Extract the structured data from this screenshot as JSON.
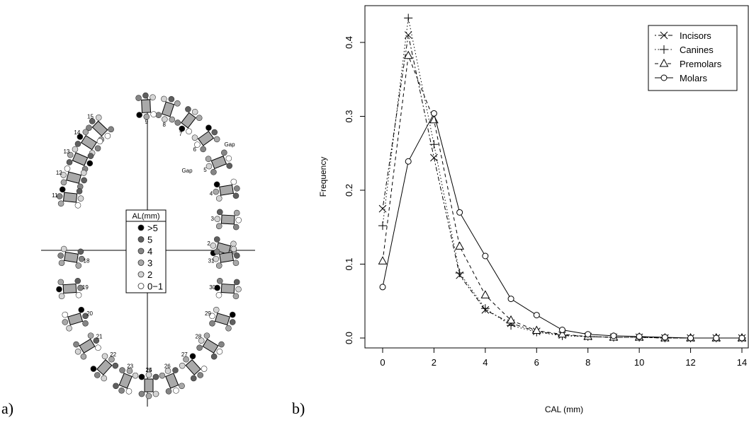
{
  "panel_labels": [
    "a)",
    "b)"
  ],
  "dental_chart": {
    "legend_title": "AL(mm)",
    "legend_entries": [
      {
        "label": ">5",
        "color": "#000000"
      },
      {
        "label": "5",
        "color": "#5f5f5f"
      },
      {
        "label": "4",
        "color": "#858585"
      },
      {
        "label": "3",
        "color": "#a8a8a8"
      },
      {
        "label": "2",
        "color": "#d4d4d4"
      },
      {
        "label": "0−1",
        "color": "#ffffff"
      }
    ],
    "upper_teeth": [
      "2",
      "3",
      "4",
      "5",
      "6",
      "7",
      "8",
      "9",
      "11",
      "12",
      "13",
      "14",
      "15"
    ],
    "lower_teeth": [
      "18",
      "19",
      "20",
      "21",
      "22",
      "23",
      "24",
      "25",
      "26",
      "27",
      "28",
      "29",
      "30",
      "31"
    ],
    "gap_labels": [
      "Gap",
      "Gap"
    ]
  },
  "chart_data": {
    "type": "line",
    "xlabel": "CAL (mm)",
    "ylabel": "Frequency",
    "xlim": [
      0,
      14
    ],
    "ylim": [
      0,
      0.43
    ],
    "x_ticks": [
      "0",
      "2",
      "4",
      "6",
      "8",
      "10",
      "12",
      "14"
    ],
    "y_ticks": [
      "0.0",
      "0.1",
      "0.2",
      "0.3",
      "0.4"
    ],
    "legend_position": "top-right",
    "x": [
      0,
      1,
      2,
      3,
      4,
      5,
      6,
      7,
      8,
      9,
      10,
      11,
      12,
      13,
      14
    ],
    "series": [
      {
        "name": "Incisors",
        "marker": "x",
        "dash": "2,3,6,3",
        "values": [
          0.175,
          0.41,
          0.244,
          0.085,
          0.038,
          0.02,
          0.009,
          0.004,
          0.002,
          0.001,
          0.001,
          0,
          0,
          0,
          0
        ]
      },
      {
        "name": "Canines",
        "marker": "+",
        "dash": "1.5,3",
        "values": [
          0.152,
          0.433,
          0.262,
          0.088,
          0.04,
          0.017,
          0.008,
          0.003,
          0.002,
          0.001,
          0.001,
          0,
          0,
          0,
          0
        ]
      },
      {
        "name": "Premolars",
        "marker": "triangle",
        "dash": "5,4",
        "values": [
          0.104,
          0.382,
          0.295,
          0.124,
          0.058,
          0.024,
          0.01,
          0.005,
          0.002,
          0.001,
          0.001,
          0,
          0,
          0,
          0
        ]
      },
      {
        "name": "Molars",
        "marker": "circle",
        "dash": "",
        "values": [
          0.069,
          0.239,
          0.304,
          0.17,
          0.111,
          0.053,
          0.031,
          0.011,
          0.005,
          0.003,
          0.002,
          0.001,
          0,
          0,
          0
        ]
      }
    ]
  }
}
